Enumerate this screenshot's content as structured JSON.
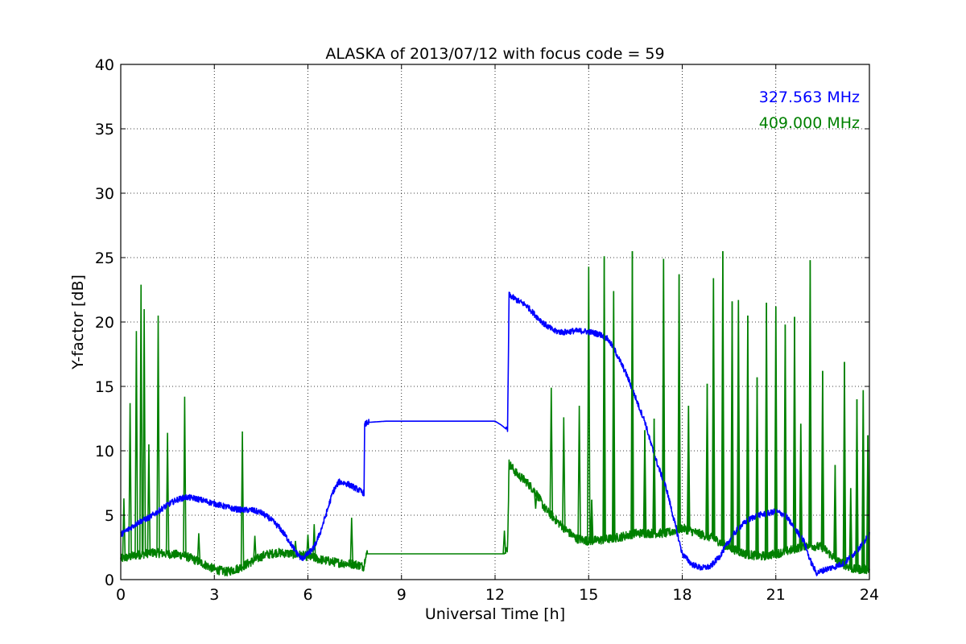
{
  "chart_data": {
    "type": "line",
    "title": "ALASKA of 2013/07/12 with focus code = 59",
    "xlabel": "Universal Time [h]",
    "ylabel": "Y-factor [dB]",
    "xlim": [
      0,
      24
    ],
    "ylim": [
      0,
      40
    ],
    "xticks": [
      0,
      3,
      6,
      9,
      12,
      15,
      18,
      21,
      24
    ],
    "yticks": [
      0,
      5,
      10,
      15,
      20,
      25,
      30,
      35,
      40
    ],
    "grid": true,
    "legend_position": "top-right",
    "series": [
      {
        "name": "327.563 MHz",
        "color": "#0000ff",
        "points": [
          [
            0.0,
            3.5
          ],
          [
            0.3,
            4.0
          ],
          [
            0.6,
            4.5
          ],
          [
            0.9,
            4.8
          ],
          [
            1.2,
            5.3
          ],
          [
            1.5,
            5.8
          ],
          [
            1.8,
            6.2
          ],
          [
            2.1,
            6.4
          ],
          [
            2.4,
            6.3
          ],
          [
            2.7,
            6.1
          ],
          [
            3.0,
            5.9
          ],
          [
            3.3,
            5.7
          ],
          [
            3.6,
            5.5
          ],
          [
            3.9,
            5.4
          ],
          [
            4.2,
            5.4
          ],
          [
            4.5,
            5.2
          ],
          [
            4.8,
            4.7
          ],
          [
            5.1,
            4.0
          ],
          [
            5.4,
            3.0
          ],
          [
            5.6,
            2.2
          ],
          [
            5.8,
            1.6
          ],
          [
            6.0,
            2.0
          ],
          [
            6.2,
            2.5
          ],
          [
            6.4,
            3.7
          ],
          [
            6.6,
            5.2
          ],
          [
            6.8,
            6.8
          ],
          [
            7.0,
            7.6
          ],
          [
            7.3,
            7.4
          ],
          [
            7.6,
            7.0
          ],
          [
            7.8,
            6.7
          ],
          [
            7.82,
            12.0
          ],
          [
            7.9,
            12.2
          ],
          [
            8.5,
            12.3
          ],
          [
            10.0,
            12.3
          ],
          [
            12.0,
            12.3
          ],
          [
            12.2,
            12.0
          ],
          [
            12.4,
            11.6
          ],
          [
            12.45,
            22.1
          ],
          [
            12.7,
            21.7
          ],
          [
            13.0,
            21.3
          ],
          [
            13.3,
            20.5
          ],
          [
            13.6,
            19.8
          ],
          [
            13.9,
            19.3
          ],
          [
            14.2,
            19.2
          ],
          [
            14.5,
            19.3
          ],
          [
            14.8,
            19.3
          ],
          [
            15.1,
            19.2
          ],
          [
            15.4,
            19.0
          ],
          [
            15.6,
            18.7
          ],
          [
            15.8,
            18.0
          ],
          [
            16.0,
            17.0
          ],
          [
            16.2,
            16.0
          ],
          [
            16.4,
            14.8
          ],
          [
            16.6,
            13.5
          ],
          [
            16.8,
            12.3
          ],
          [
            17.0,
            10.5
          ],
          [
            17.2,
            9.0
          ],
          [
            17.5,
            7.0
          ],
          [
            17.8,
            4.0
          ],
          [
            18.0,
            2.0
          ],
          [
            18.3,
            1.2
          ],
          [
            18.6,
            0.9
          ],
          [
            18.9,
            1.0
          ],
          [
            19.2,
            1.8
          ],
          [
            19.5,
            3.0
          ],
          [
            19.8,
            4.0
          ],
          [
            20.1,
            4.6
          ],
          [
            20.4,
            5.0
          ],
          [
            20.7,
            5.1
          ],
          [
            21.0,
            5.3
          ],
          [
            21.3,
            5.0
          ],
          [
            21.6,
            4.0
          ],
          [
            21.9,
            3.0
          ],
          [
            22.1,
            1.5
          ],
          [
            22.3,
            0.5
          ],
          [
            22.6,
            0.8
          ],
          [
            22.9,
            1.0
          ],
          [
            23.2,
            1.3
          ],
          [
            23.5,
            2.0
          ],
          [
            23.8,
            2.8
          ],
          [
            24.0,
            3.5
          ]
        ]
      },
      {
        "name": "409.000 MHz",
        "color": "#008000",
        "baseline": [
          [
            0.0,
            1.6
          ],
          [
            0.5,
            1.9
          ],
          [
            1.0,
            2.1
          ],
          [
            1.5,
            2.0
          ],
          [
            2.0,
            1.9
          ],
          [
            2.5,
            1.4
          ],
          [
            3.0,
            0.8
          ],
          [
            3.4,
            0.6
          ],
          [
            3.8,
            0.9
          ],
          [
            4.2,
            1.4
          ],
          [
            4.6,
            1.9
          ],
          [
            5.0,
            2.1
          ],
          [
            5.5,
            2.0
          ],
          [
            6.0,
            1.8
          ],
          [
            6.5,
            1.5
          ],
          [
            7.0,
            1.3
          ],
          [
            7.5,
            1.2
          ],
          [
            7.8,
            1.0
          ],
          [
            7.85,
            2.0
          ],
          [
            8.0,
            2.0
          ],
          [
            10.0,
            2.0
          ],
          [
            12.0,
            2.0
          ],
          [
            12.3,
            2.0
          ],
          [
            12.4,
            2.5
          ],
          [
            12.45,
            9.0
          ],
          [
            12.7,
            8.2
          ],
          [
            13.0,
            7.6
          ],
          [
            13.3,
            6.8
          ],
          [
            13.6,
            5.5
          ],
          [
            14.0,
            4.5
          ],
          [
            14.3,
            3.8
          ],
          [
            14.6,
            3.2
          ],
          [
            15.0,
            3.0
          ],
          [
            15.5,
            3.1
          ],
          [
            16.0,
            3.3
          ],
          [
            16.5,
            3.6
          ],
          [
            17.0,
            3.6
          ],
          [
            17.5,
            3.6
          ],
          [
            18.0,
            4.0
          ],
          [
            18.5,
            3.6
          ],
          [
            19.0,
            3.2
          ],
          [
            19.5,
            2.5
          ],
          [
            20.0,
            2.0
          ],
          [
            20.5,
            1.8
          ],
          [
            21.0,
            2.0
          ],
          [
            21.5,
            2.3
          ],
          [
            22.0,
            2.7
          ],
          [
            22.5,
            2.5
          ],
          [
            23.0,
            1.4
          ],
          [
            23.5,
            0.8
          ],
          [
            24.0,
            0.8
          ]
        ],
        "spikes": [
          [
            0.1,
            6.3
          ],
          [
            0.3,
            13.7
          ],
          [
            0.5,
            19.3
          ],
          [
            0.65,
            22.9
          ],
          [
            0.75,
            21.0
          ],
          [
            0.9,
            10.5
          ],
          [
            1.2,
            20.5
          ],
          [
            1.5,
            11.4
          ],
          [
            2.05,
            14.2
          ],
          [
            2.5,
            3.6
          ],
          [
            3.9,
            11.5
          ],
          [
            4.3,
            3.4
          ],
          [
            5.6,
            3.0
          ],
          [
            6.0,
            3.5
          ],
          [
            6.2,
            4.3
          ],
          [
            7.4,
            4.8
          ],
          [
            12.3,
            3.8
          ],
          [
            13.3,
            5.5
          ],
          [
            13.8,
            14.9
          ],
          [
            14.2,
            12.6
          ],
          [
            14.7,
            13.5
          ],
          [
            15.0,
            24.3
          ],
          [
            15.1,
            6.2
          ],
          [
            15.5,
            25.1
          ],
          [
            15.8,
            22.4
          ],
          [
            16.4,
            25.5
          ],
          [
            16.8,
            11.6
          ],
          [
            17.1,
            12.5
          ],
          [
            17.4,
            24.9
          ],
          [
            17.9,
            23.7
          ],
          [
            18.2,
            13.5
          ],
          [
            18.8,
            15.2
          ],
          [
            19.0,
            23.4
          ],
          [
            19.3,
            25.5
          ],
          [
            19.6,
            21.6
          ],
          [
            19.8,
            21.7
          ],
          [
            20.1,
            20.5
          ],
          [
            20.4,
            15.7
          ],
          [
            20.7,
            21.5
          ],
          [
            21.0,
            21.2
          ],
          [
            21.3,
            19.8
          ],
          [
            21.6,
            20.4
          ],
          [
            21.8,
            12.1
          ],
          [
            22.1,
            24.8
          ],
          [
            22.5,
            16.2
          ],
          [
            22.9,
            8.9
          ],
          [
            23.2,
            16.9
          ],
          [
            23.4,
            7.1
          ],
          [
            23.6,
            14.0
          ],
          [
            23.8,
            14.7
          ],
          [
            23.95,
            11.2
          ]
        ]
      }
    ]
  }
}
